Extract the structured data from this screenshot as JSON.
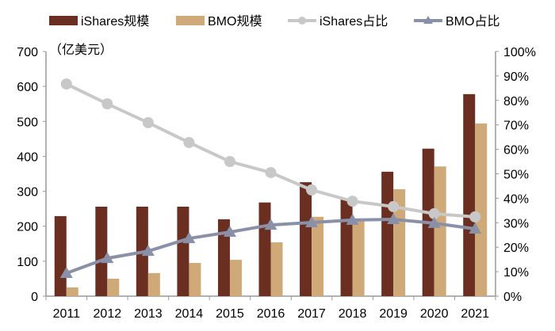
{
  "chart_data": {
    "type": "bar+line",
    "unit_label": "（亿美元）",
    "categories": [
      "2011",
      "2012",
      "2013",
      "2014",
      "2015",
      "2016",
      "2017",
      "2018",
      "2019",
      "2020",
      "2021"
    ],
    "bar_series": [
      {
        "name": "iShares规模",
        "color": "#6B2F22",
        "values": [
          229,
          256,
          256,
          256,
          220,
          268,
          326,
          277,
          356,
          422,
          578
        ]
      },
      {
        "name": "BMO规模",
        "color": "#CFAA78",
        "values": [
          25,
          50,
          66,
          95,
          104,
          154,
          227,
          215,
          306,
          371,
          494
        ]
      }
    ],
    "line_series": [
      {
        "name": "iShares占比",
        "color": "#C8C8C8",
        "marker": "circle",
        "axis": "right",
        "values": [
          86.7,
          78.6,
          70.9,
          62.8,
          55.0,
          50.5,
          43.4,
          38.8,
          36.6,
          33.7,
          32.4
        ]
      },
      {
        "name": "BMO占比",
        "color": "#8A90A8",
        "marker": "triangle",
        "axis": "right",
        "values": [
          9.4,
          15.5,
          18.4,
          23.6,
          26.2,
          29.1,
          30.1,
          31.1,
          31.4,
          29.8,
          27.5
        ]
      }
    ],
    "left_axis": {
      "ylim": [
        0,
        700
      ],
      "ticks": [
        "0",
        "100",
        "200",
        "300",
        "400",
        "500",
        "600",
        "700"
      ]
    },
    "right_axis": {
      "ylim": [
        0,
        100
      ],
      "ticks": [
        "0%",
        "10%",
        "20%",
        "30%",
        "40%",
        "50%",
        "60%",
        "70%",
        "80%",
        "90%",
        "100%"
      ]
    },
    "grid": false,
    "legend_position": "top"
  }
}
